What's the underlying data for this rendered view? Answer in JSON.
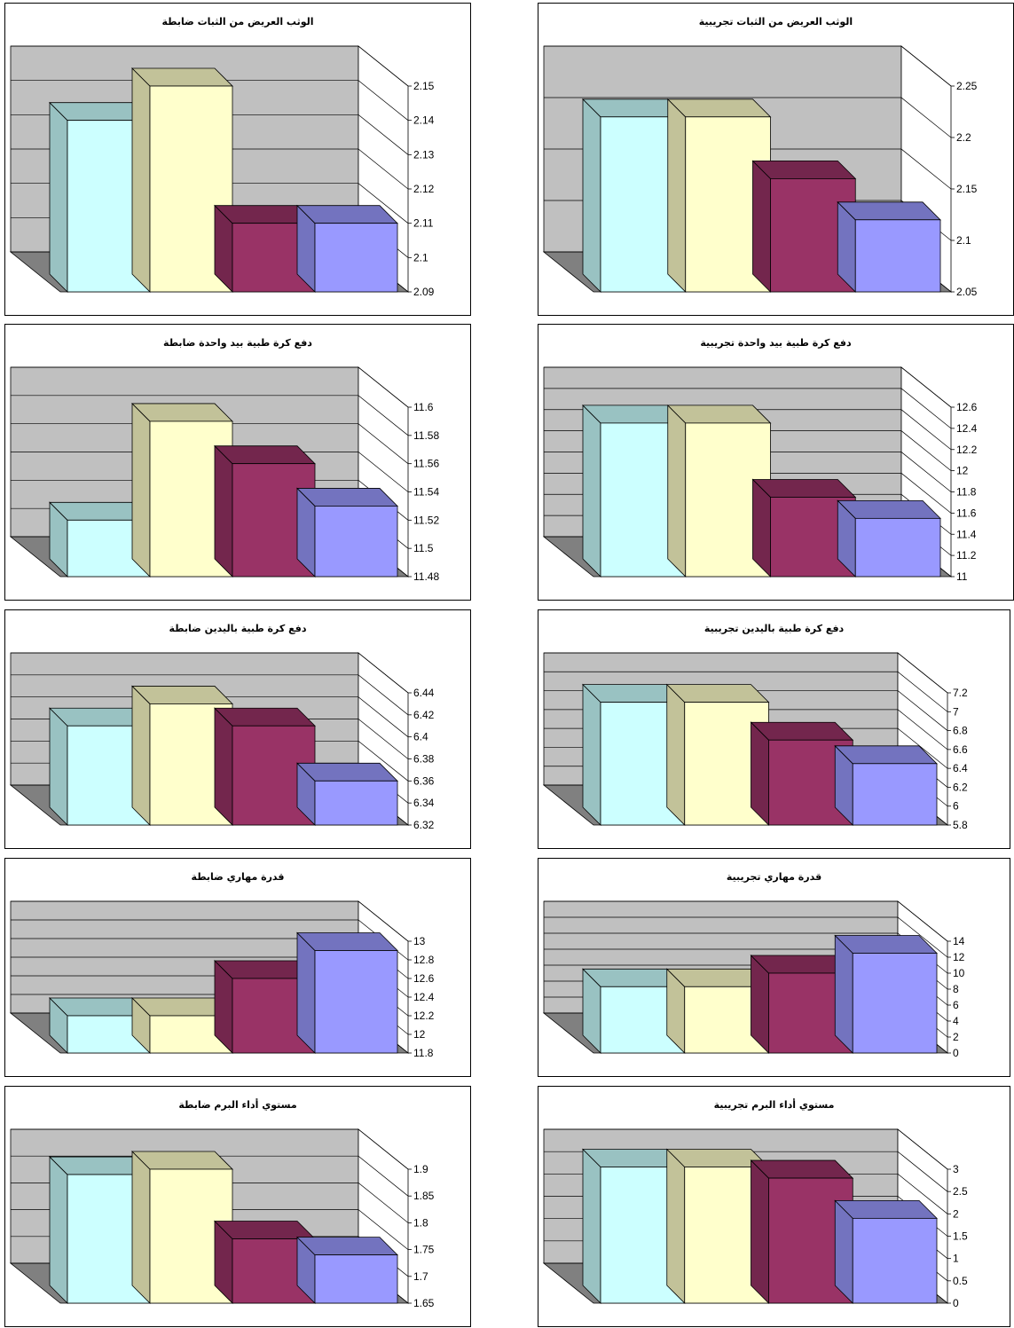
{
  "colors": {
    "wall": "#c0c0c0",
    "floor": "#808080",
    "grid": "#000000",
    "series": [
      "#ccffff",
      "#ffffcc",
      "#993366",
      "#9999ff"
    ],
    "series_side": [
      "#99c2c2",
      "#c2c299",
      "#73264d",
      "#7373bf"
    ]
  },
  "chart_data": [
    {
      "type": "bar",
      "title": "الوثب العريض من الثبات ضابطة",
      "values": [
        2.14,
        2.15,
        2.11,
        2.11
      ],
      "ylim": [
        2.09,
        2.15
      ],
      "ticks": [
        "2.15",
        "2.14",
        "2.13",
        "2.12",
        "2.11",
        "2.1",
        "2.09"
      ],
      "grid": true,
      "legend": "none"
    },
    {
      "type": "bar",
      "title": "الوثب العريض من الثبات تجريبية",
      "values": [
        2.22,
        2.22,
        2.16,
        2.12
      ],
      "ylim": [
        2.05,
        2.25
      ],
      "ticks": [
        "2.25",
        "2.2",
        "2.15",
        "2.1",
        "2.05"
      ],
      "grid": true,
      "legend": "none"
    },
    {
      "type": "bar",
      "title": "دفع كرة طبية بيد واحدة ضابطة",
      "values": [
        11.52,
        11.59,
        11.56,
        11.53
      ],
      "ylim": [
        11.48,
        11.6
      ],
      "ticks": [
        "11.6",
        "11.58",
        "11.56",
        "11.54",
        "11.52",
        "11.5",
        "11.48"
      ],
      "grid": true,
      "legend": "none"
    },
    {
      "type": "bar",
      "title": "دفع كرة طبية بيد واحدة تجريبية",
      "values": [
        12.45,
        12.45,
        11.75,
        11.55
      ],
      "ylim": [
        11,
        12.6
      ],
      "ticks": [
        "12.6",
        "12.4",
        "12.2",
        "12",
        "11.8",
        "11.6",
        "11.4",
        "11.2",
        "11"
      ],
      "grid": true,
      "legend": "none"
    },
    {
      "type": "bar",
      "title": "دفع كرة طبية باليدين ضابطة",
      "values": [
        6.41,
        6.43,
        6.41,
        6.36
      ],
      "ylim": [
        6.32,
        6.44
      ],
      "ticks": [
        "6.44",
        "6.42",
        "6.4",
        "6.38",
        "6.36",
        "6.34",
        "6.32"
      ],
      "grid": true,
      "legend": "none"
    },
    {
      "type": "bar",
      "title": "دفع كرة طبية باليدين تجريبية",
      "values": [
        7.1,
        7.1,
        6.7,
        6.45
      ],
      "ylim": [
        5.8,
        7.2
      ],
      "ticks": [
        "7.2",
        "7",
        "6.8",
        "6.6",
        "6.4",
        "6.2",
        "6",
        "5.8"
      ],
      "grid": true,
      "legend": "none"
    },
    {
      "type": "bar",
      "title": "قدرة مهاري ضابطة",
      "values": [
        12.2,
        12.2,
        12.6,
        12.9
      ],
      "ylim": [
        11.8,
        13
      ],
      "ticks": [
        "13",
        "12.8",
        "12.6",
        "12.4",
        "12.2",
        "12",
        "11.8"
      ],
      "grid": true,
      "legend": "none"
    },
    {
      "type": "bar",
      "title": "قدرة مهاري تجريبية",
      "values": [
        8.3,
        8.3,
        10,
        12.5
      ],
      "ylim": [
        0,
        14
      ],
      "ticks": [
        "14",
        "12",
        "10",
        "8",
        "6",
        "4",
        "2",
        "0"
      ],
      "grid": true,
      "legend": "none"
    },
    {
      "type": "bar",
      "title": "مستوي أداء البرم ضابطة",
      "values": [
        1.89,
        1.9,
        1.77,
        1.74
      ],
      "ylim": [
        1.65,
        1.9
      ],
      "ticks": [
        "1.9",
        "1.85",
        "1.8",
        "1.75",
        "1.7",
        "1.65"
      ],
      "grid": true,
      "legend": "none"
    },
    {
      "type": "bar",
      "title": "مستوي أداء البرم تجريبية",
      "values": [
        3.05,
        3.05,
        2.8,
        1.9
      ],
      "ylim": [
        0,
        3
      ],
      "ticks": [
        "3",
        "2.5",
        "2",
        "1.5",
        "1",
        "0.5",
        "0"
      ],
      "grid": true,
      "legend": "none"
    }
  ]
}
